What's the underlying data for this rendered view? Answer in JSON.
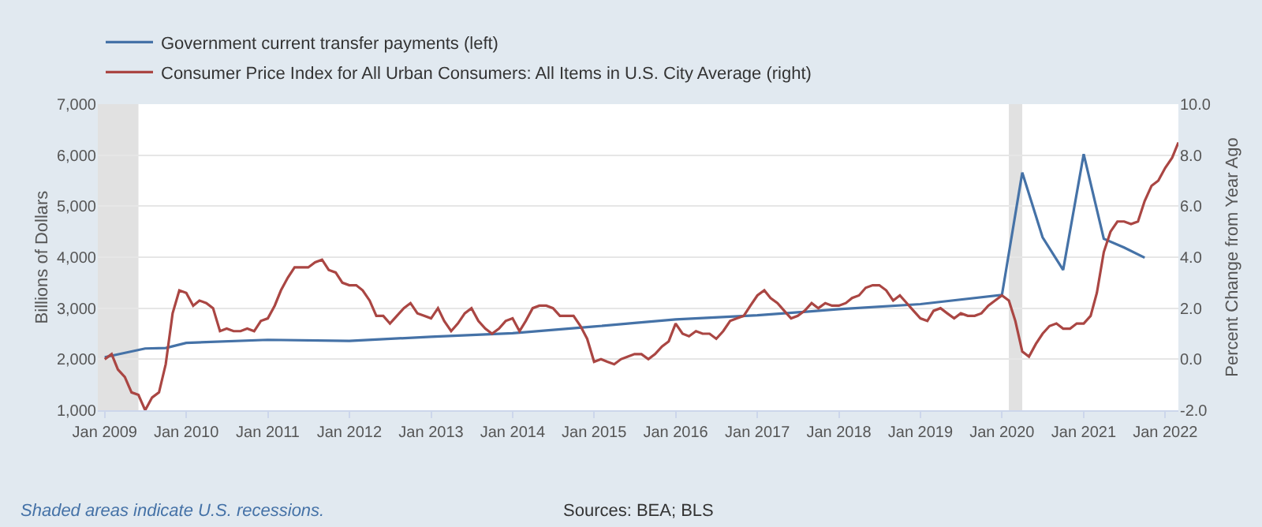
{
  "chart_data": {
    "type": "line",
    "ylabel": "Billions of Dollars",
    "y2label": "Percent Change from Year Ago",
    "xlim": [
      "2008-12-01",
      "2022-03-01"
    ],
    "xticks": [
      {
        "value": "2009-01",
        "label": "Jan 2009"
      },
      {
        "value": "2010-01",
        "label": "Jan 2010"
      },
      {
        "value": "2011-01",
        "label": "Jan 2011"
      },
      {
        "value": "2012-01",
        "label": "Jan 2012"
      },
      {
        "value": "2013-01",
        "label": "Jan 2013"
      },
      {
        "value": "2014-01",
        "label": "Jan 2014"
      },
      {
        "value": "2015-01",
        "label": "Jan 2015"
      },
      {
        "value": "2016-01",
        "label": "Jan 2016"
      },
      {
        "value": "2017-01",
        "label": "Jan 2017"
      },
      {
        "value": "2018-01",
        "label": "Jan 2018"
      },
      {
        "value": "2019-01",
        "label": "Jan 2019"
      },
      {
        "value": "2020-01",
        "label": "Jan 2020"
      },
      {
        "value": "2021-01",
        "label": "Jan 2021"
      },
      {
        "value": "2022-01",
        "label": "Jan 2022"
      }
    ],
    "ylim": [
      1000,
      7000
    ],
    "yticks": [
      {
        "value": 1000,
        "label": "1,000"
      },
      {
        "value": 2000,
        "label": "2,000"
      },
      {
        "value": 3000,
        "label": "3,000"
      },
      {
        "value": 4000,
        "label": "4,000"
      },
      {
        "value": 5000,
        "label": "5,000"
      },
      {
        "value": 6000,
        "label": "6,000"
      },
      {
        "value": 7000,
        "label": "7,000"
      }
    ],
    "y2lim": [
      -2,
      10
    ],
    "y2ticks": [
      {
        "value": -2,
        "label": "-2.0"
      },
      {
        "value": 0,
        "label": "0.0"
      },
      {
        "value": 2,
        "label": "2.0"
      },
      {
        "value": 4,
        "label": "4.0"
      },
      {
        "value": 6,
        "label": "6.0"
      },
      {
        "value": 8,
        "label": "8.0"
      },
      {
        "value": 10,
        "label": "10.0"
      }
    ],
    "grid": "y",
    "legend": "top left",
    "marker": "none",
    "line_style": "solid",
    "bands": [
      {
        "axis": "x",
        "from": "2008-12-01",
        "to": "2009-06-01",
        "color": "#e1e1e1"
      },
      {
        "axis": "x",
        "from": "2020-02-01",
        "to": "2020-04-01",
        "color": "#e1e1e1"
      }
    ],
    "annotations": [
      "Shaded areas indicate U.S. recessions.",
      "Sources: BEA; BLS"
    ],
    "series": [
      {
        "name": "Government current transfer payments (left)",
        "color": "#4572a7",
        "x": [
          "2009-01",
          "2009-07",
          "2009-10",
          "2010-01",
          "2011-01",
          "2012-01",
          "2013-01",
          "2014-01",
          "2015-01",
          "2015-07",
          "2016-01",
          "2017-01",
          "2018-01",
          "2019-01",
          "2020-01",
          "2020-04",
          "2020-07",
          "2020-10",
          "2021-01",
          "2021-04",
          "2021-07",
          "2021-10"
        ],
        "values": [
          2040,
          2210,
          2220,
          2320,
          2380,
          2360,
          2440,
          2510,
          2640,
          2710,
          2780,
          2860,
          2980,
          3080,
          3260,
          5660,
          4390,
          3750,
          6020,
          4360,
          4190,
          3990
        ]
      },
      {
        "name": "Consumer Price Index for All Urban Consumers: All Items in U.S. City Average (right)",
        "color": "#aa4643",
        "axis": "y2",
        "x": [
          "2009-01",
          "2009-02",
          "2009-03",
          "2009-04",
          "2009-05",
          "2009-06",
          "2009-07",
          "2009-08",
          "2009-09",
          "2009-10",
          "2009-11",
          "2009-12",
          "2010-01",
          "2010-02",
          "2010-03",
          "2010-04",
          "2010-05",
          "2010-06",
          "2010-07",
          "2010-08",
          "2010-09",
          "2010-10",
          "2010-11",
          "2010-12",
          "2011-01",
          "2011-02",
          "2011-03",
          "2011-04",
          "2011-05",
          "2011-06",
          "2011-07",
          "2011-08",
          "2011-09",
          "2011-10",
          "2011-11",
          "2011-12",
          "2012-01",
          "2012-02",
          "2012-03",
          "2012-04",
          "2012-05",
          "2012-06",
          "2012-07",
          "2012-08",
          "2012-09",
          "2012-10",
          "2012-11",
          "2012-12",
          "2013-01",
          "2013-02",
          "2013-03",
          "2013-04",
          "2013-05",
          "2013-06",
          "2013-07",
          "2013-08",
          "2013-09",
          "2013-10",
          "2013-11",
          "2013-12",
          "2014-01",
          "2014-02",
          "2014-03",
          "2014-04",
          "2014-05",
          "2014-06",
          "2014-07",
          "2014-08",
          "2014-09",
          "2014-10",
          "2014-11",
          "2014-12",
          "2015-01",
          "2015-02",
          "2015-03",
          "2015-04",
          "2015-05",
          "2015-06",
          "2015-07",
          "2015-08",
          "2015-09",
          "2015-10",
          "2015-11",
          "2015-12",
          "2016-01",
          "2016-02",
          "2016-03",
          "2016-04",
          "2016-05",
          "2016-06",
          "2016-07",
          "2016-08",
          "2016-09",
          "2016-10",
          "2016-11",
          "2016-12",
          "2017-01",
          "2017-02",
          "2017-03",
          "2017-04",
          "2017-05",
          "2017-06",
          "2017-07",
          "2017-08",
          "2017-09",
          "2017-10",
          "2017-11",
          "2017-12",
          "2018-01",
          "2018-02",
          "2018-03",
          "2018-04",
          "2018-05",
          "2018-06",
          "2018-07",
          "2018-08",
          "2018-09",
          "2018-10",
          "2018-11",
          "2018-12",
          "2019-01",
          "2019-02",
          "2019-03",
          "2019-04",
          "2019-05",
          "2019-06",
          "2019-07",
          "2019-08",
          "2019-09",
          "2019-10",
          "2019-11",
          "2019-12",
          "2020-01",
          "2020-02",
          "2020-03",
          "2020-04",
          "2020-05",
          "2020-06",
          "2020-07",
          "2020-08",
          "2020-09",
          "2020-10",
          "2020-11",
          "2020-12",
          "2021-01",
          "2021-02",
          "2021-03",
          "2021-04",
          "2021-05",
          "2021-06",
          "2021-07",
          "2021-08",
          "2021-09",
          "2021-10",
          "2021-11",
          "2021-12",
          "2022-01",
          "2022-02",
          "2022-03"
        ],
        "values": [
          0.0,
          0.2,
          -0.4,
          -0.7,
          -1.3,
          -1.4,
          -2.0,
          -1.5,
          -1.3,
          -0.2,
          1.8,
          2.7,
          2.6,
          2.1,
          2.3,
          2.2,
          2.0,
          1.1,
          1.2,
          1.1,
          1.1,
          1.2,
          1.1,
          1.5,
          1.6,
          2.1,
          2.7,
          3.2,
          3.6,
          3.6,
          3.6,
          3.8,
          3.9,
          3.5,
          3.4,
          3.0,
          2.9,
          2.9,
          2.7,
          2.3,
          1.7,
          1.7,
          1.4,
          1.7,
          2.0,
          2.2,
          1.8,
          1.7,
          1.6,
          2.0,
          1.5,
          1.1,
          1.4,
          1.8,
          2.0,
          1.5,
          1.2,
          1.0,
          1.2,
          1.5,
          1.6,
          1.1,
          1.5,
          2.0,
          2.1,
          2.1,
          2.0,
          1.7,
          1.7,
          1.7,
          1.3,
          0.8,
          -0.1,
          0.0,
          -0.1,
          -0.2,
          0.0,
          0.1,
          0.2,
          0.2,
          0.0,
          0.2,
          0.5,
          0.7,
          1.4,
          1.0,
          0.9,
          1.1,
          1.0,
          1.0,
          0.8,
          1.1,
          1.5,
          1.6,
          1.7,
          2.1,
          2.5,
          2.7,
          2.4,
          2.2,
          1.9,
          1.6,
          1.7,
          1.9,
          2.2,
          2.0,
          2.2,
          2.1,
          2.1,
          2.2,
          2.4,
          2.5,
          2.8,
          2.9,
          2.9,
          2.7,
          2.3,
          2.5,
          2.2,
          1.9,
          1.6,
          1.5,
          1.9,
          2.0,
          1.8,
          1.6,
          1.8,
          1.7,
          1.7,
          1.8,
          2.1,
          2.3,
          2.5,
          2.3,
          1.5,
          0.3,
          0.1,
          0.6,
          1.0,
          1.3,
          1.4,
          1.2,
          1.2,
          1.4,
          1.4,
          1.7,
          2.6,
          4.2,
          5.0,
          5.4,
          5.4,
          5.3,
          5.4,
          6.2,
          6.8,
          7.0,
          7.5,
          7.9,
          8.5
        ]
      }
    ]
  }
}
